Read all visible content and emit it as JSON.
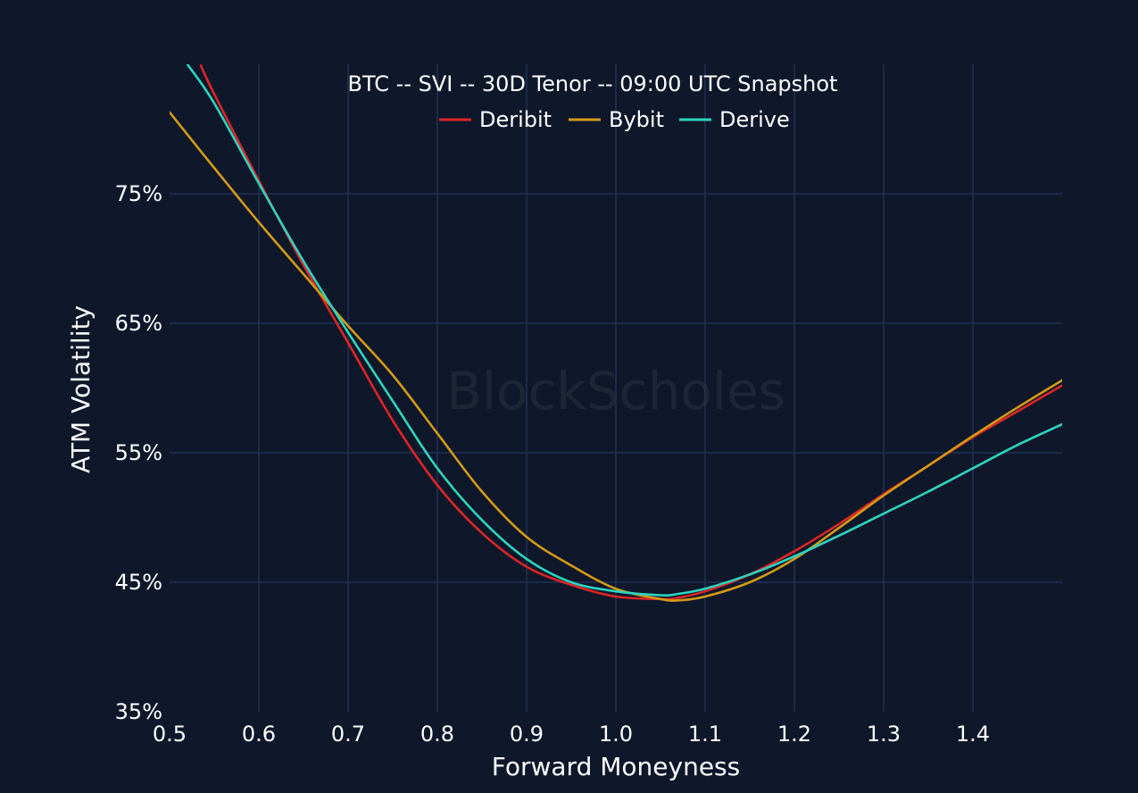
{
  "chart_data": {
    "type": "line",
    "title": "BTC -- SVI -- 30D Tenor -- 09:00 UTC Snapshot",
    "xlabel": "Forward Moneyness",
    "ylabel": "ATM Volatility",
    "watermark": "BlockScholes",
    "xlim": [
      0.5,
      1.5
    ],
    "ylim": [
      35,
      85
    ],
    "x_ticks": [
      {
        "value": 0.5,
        "label": "0.5"
      },
      {
        "value": 0.6,
        "label": "0.6"
      },
      {
        "value": 0.7,
        "label": "0.7"
      },
      {
        "value": 0.8,
        "label": "0.8"
      },
      {
        "value": 0.9,
        "label": "0.9"
      },
      {
        "value": 1.0,
        "label": "1.0"
      },
      {
        "value": 1.1,
        "label": "1.1"
      },
      {
        "value": 1.2,
        "label": "1.2"
      },
      {
        "value": 1.3,
        "label": "1.3"
      },
      {
        "value": 1.4,
        "label": "1.4"
      }
    ],
    "y_ticks": [
      {
        "value": 35,
        "label": "35%"
      },
      {
        "value": 45,
        "label": "45%"
      },
      {
        "value": 55,
        "label": "55%"
      },
      {
        "value": 65,
        "label": "65%"
      },
      {
        "value": 75,
        "label": "75%"
      }
    ],
    "grid": true,
    "legend_position": "top-center",
    "series": [
      {
        "name": "Deribit",
        "color": "#dc2626",
        "x": [
          0.535,
          0.55,
          0.6,
          0.65,
          0.7,
          0.75,
          0.8,
          0.85,
          0.9,
          0.95,
          1.0,
          1.05,
          1.07,
          1.1,
          1.15,
          1.2,
          1.25,
          1.3,
          1.35,
          1.4,
          1.45,
          1.5
        ],
        "y": [
          84.9,
          82.7,
          76.0,
          69.5,
          63.5,
          57.5,
          52.5,
          48.8,
          46.2,
          44.8,
          43.9,
          43.7,
          43.8,
          44.3,
          45.6,
          47.4,
          49.5,
          51.8,
          54.0,
          56.2,
          58.2,
          60.2
        ]
      },
      {
        "name": "Bybit",
        "color": "#d49a16",
        "x": [
          0.5,
          0.55,
          0.6,
          0.65,
          0.7,
          0.75,
          0.8,
          0.85,
          0.9,
          0.95,
          1.0,
          1.05,
          1.07,
          1.1,
          1.15,
          1.2,
          1.25,
          1.3,
          1.35,
          1.4,
          1.45,
          1.5
        ],
        "y": [
          81.3,
          77.0,
          72.8,
          68.8,
          64.8,
          61.0,
          56.5,
          52.0,
          48.5,
          46.3,
          44.5,
          43.7,
          43.6,
          43.9,
          45.0,
          46.8,
          49.2,
          51.7,
          54.0,
          56.3,
          58.5,
          60.6
        ]
      },
      {
        "name": "Derive",
        "color": "#2dd4bf",
        "x": [
          0.52,
          0.55,
          0.6,
          0.65,
          0.7,
          0.75,
          0.8,
          0.85,
          0.9,
          0.95,
          1.0,
          1.05,
          1.07,
          1.1,
          1.15,
          1.2,
          1.25,
          1.3,
          1.35,
          1.4,
          1.45,
          1.5
        ],
        "y": [
          85.0,
          82.0,
          75.8,
          69.8,
          64.3,
          59.0,
          53.8,
          49.8,
          46.8,
          45.0,
          44.3,
          44.0,
          44.1,
          44.5,
          45.6,
          47.0,
          48.6,
          50.3,
          52.0,
          53.8,
          55.6,
          57.2
        ]
      }
    ]
  }
}
